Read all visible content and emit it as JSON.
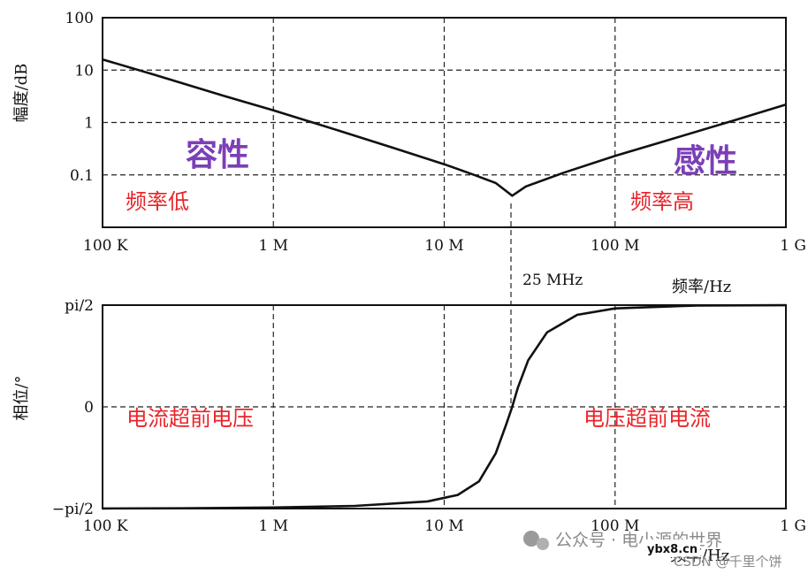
{
  "chart_data": [
    {
      "type": "line",
      "ylabel": "幅度/dB",
      "xlabel": "",
      "x_scale": "log",
      "y_scale": "log",
      "xlim": [
        100000,
        1000000000
      ],
      "ylim": [
        0.01,
        100
      ],
      "x_ticks": [
        {
          "value": 100000,
          "label": "100 K"
        },
        {
          "value": 1000000,
          "label": "1 M"
        },
        {
          "value": 10000000,
          "label": "10 M"
        },
        {
          "value": 100000000,
          "label": "100 M"
        },
        {
          "value": 1000000000,
          "label": "1 G"
        }
      ],
      "y_ticks": [
        {
          "value": 100,
          "label": "100"
        },
        {
          "value": 10,
          "label": "10"
        },
        {
          "value": 1,
          "label": "1"
        },
        {
          "value": 0.1,
          "label": "0.1"
        }
      ],
      "grid": true,
      "series": [
        {
          "x": [
            100000,
            200000,
            500000,
            1000000,
            2000000,
            5000000,
            10000000,
            15000000,
            20000000,
            25000000,
            30000000,
            50000000,
            100000000,
            200000000,
            500000000,
            1000000000
          ],
          "y": [
            16,
            8.2,
            3.3,
            1.7,
            0.85,
            0.33,
            0.16,
            0.1,
            0.07,
            0.04,
            0.06,
            0.11,
            0.23,
            0.45,
            1.1,
            2.2
          ]
        }
      ],
      "annotations": {
        "capacitive": "容性",
        "inductive": "感性",
        "low_freq": "频率低",
        "high_freq": "频率高",
        "resonance": "25 MHz",
        "freq_unit": "频率/Hz"
      }
    },
    {
      "type": "line",
      "ylabel": "相位/°",
      "xlabel": "频率/Hz",
      "x_scale": "log",
      "xlim": [
        100000,
        1000000000
      ],
      "ylim": [
        -1.5708,
        1.5708
      ],
      "x_ticks": [
        {
          "value": 100000,
          "label": "100 K"
        },
        {
          "value": 1000000,
          "label": "1 M"
        },
        {
          "value": 10000000,
          "label": "10 M"
        },
        {
          "value": 100000000,
          "label": "100 M"
        },
        {
          "value": 1000000000,
          "label": "1 G"
        }
      ],
      "y_ticks": [
        {
          "value": 1.5708,
          "label": "pi/2"
        },
        {
          "value": 0,
          "label": "0"
        },
        {
          "value": -1.5708,
          "label": "−pi/2"
        }
      ],
      "grid": true,
      "series": [
        {
          "x": [
            100000,
            300000,
            1000000,
            3000000,
            8000000,
            12000000,
            16000000,
            20000000,
            23000000,
            25000000,
            27000000,
            31000000,
            40000000,
            60000000,
            100000000,
            300000000,
            1000000000
          ],
          "y": [
            -1.57,
            -1.567,
            -1.555,
            -1.53,
            -1.46,
            -1.36,
            -1.15,
            -0.72,
            -0.28,
            0,
            0.3,
            0.72,
            1.15,
            1.42,
            1.52,
            1.565,
            1.57
          ]
        }
      ],
      "annotations": {
        "left": "电流超前电压",
        "right": "电压超前电流"
      }
    }
  ],
  "watermark": {
    "wechat": "公众号 · 电小源的世界",
    "site": "ybx8.cn",
    "csdn": "CSDN @千里个饼"
  }
}
